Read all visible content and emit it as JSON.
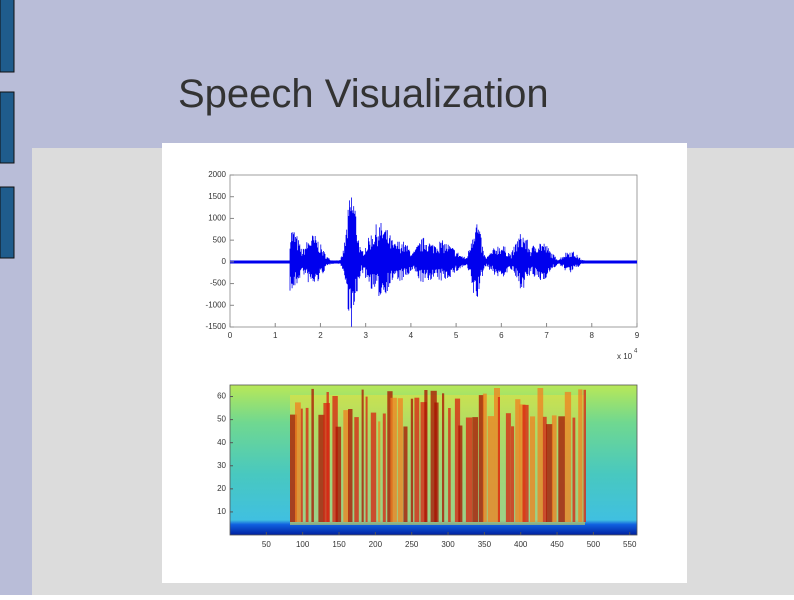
{
  "title": "Speech Visualization",
  "waveform": {
    "ylim": [
      -1500,
      2000
    ],
    "yticks": [
      2000,
      1500,
      1000,
      500,
      0,
      -500,
      -1000,
      -1500
    ],
    "xlim": [
      0,
      9
    ],
    "xticks": [
      0,
      1,
      2,
      3,
      4,
      5,
      6,
      7,
      8,
      9
    ],
    "x_multiplier": "x 10",
    "x_exponent": "4"
  },
  "spectrogram": {
    "xlim": [
      0,
      560
    ],
    "xticks": [
      50,
      100,
      150,
      200,
      250,
      300,
      350,
      400,
      450,
      500,
      550
    ],
    "ylim": [
      0,
      65
    ],
    "yticks": [
      60,
      50,
      40,
      30,
      20,
      10
    ]
  }
}
